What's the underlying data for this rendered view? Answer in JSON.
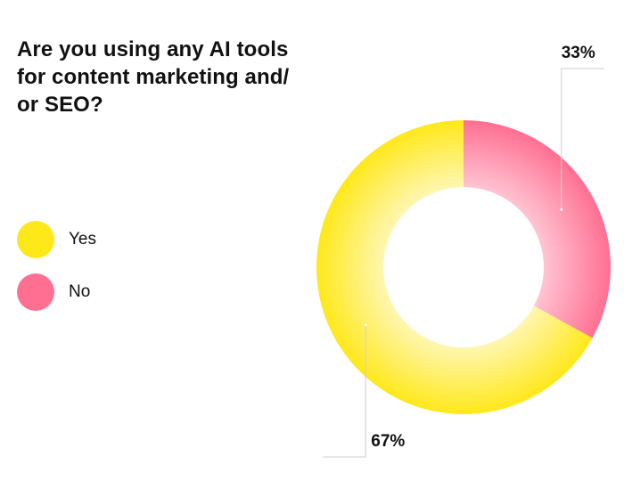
{
  "chart_data": {
    "type": "pie",
    "variant": "donut",
    "title_lines": [
      "Are you using any AI tools",
      "for content marketing and/",
      "or SEO?"
    ],
    "categories": [
      "Yes",
      "No"
    ],
    "values": [
      67,
      33
    ],
    "value_labels": [
      "67%",
      "33%"
    ],
    "colors": [
      "#ffe81a",
      "#ff6f92"
    ],
    "legend_position": "left"
  }
}
